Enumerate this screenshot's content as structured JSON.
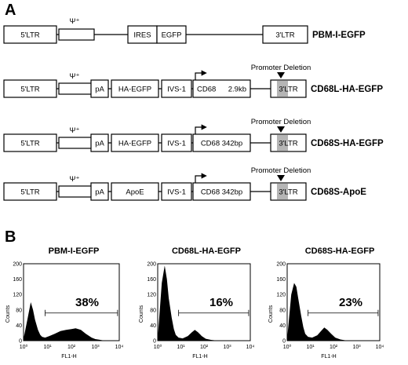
{
  "panels": {
    "a": "A",
    "b": "B"
  },
  "psi": "Ψ⁺",
  "promoter_deletion": "Promoter Deletion",
  "constructs": [
    {
      "name": "PBM-I-EGFP",
      "ltr5": "5'LTR",
      "ires": "IRES",
      "egfp": "EGFP",
      "ltr3": "3'LTR"
    },
    {
      "name": "CD68L-HA-EGFP",
      "ltr5": "5'LTR",
      "pa": "pA",
      "gene": "HA-EGFP",
      "ivs": "IVS-1",
      "cd68": "CD68",
      "size": "2.9kb",
      "ltr3": "3'LTR"
    },
    {
      "name": "CD68S-HA-EGFP",
      "ltr5": "5'LTR",
      "pa": "pA",
      "gene": "HA-EGFP",
      "ivs": "IVS-1",
      "cd68": "CD68 342bp",
      "ltr3": "3'LTR"
    },
    {
      "name": "CD68S-ApoE",
      "ltr5": "5'LTR",
      "pa": "pA",
      "gene": "ApoE",
      "ivs": "IVS-1",
      "cd68": "CD68 342bp",
      "ltr3": "3'LTR"
    }
  ],
  "chart_data": [
    {
      "type": "area",
      "title": "PBM-I-EGFP",
      "percent": "38%",
      "xlabel": "FL1-H",
      "ylabel": "Counts",
      "x_scale": "log",
      "xlim": [
        1,
        10000
      ],
      "ylim": [
        0,
        200
      ],
      "x_ticks": [
        "10⁰",
        "10¹",
        "10²",
        "10³",
        "10⁴"
      ],
      "y_ticks": [
        "0",
        "40",
        "80",
        "120",
        "160",
        "200"
      ],
      "gate": [
        8,
        8500
      ],
      "x": [
        1,
        1.5,
        2,
        2.5,
        3,
        4,
        5,
        6,
        8,
        12,
        20,
        35,
        60,
        100,
        150,
        250,
        400,
        700,
        1000,
        2000,
        10000
      ],
      "y": [
        5,
        60,
        100,
        80,
        55,
        28,
        15,
        10,
        8,
        12,
        18,
        25,
        28,
        30,
        32,
        28,
        18,
        8,
        4,
        1,
        0
      ]
    },
    {
      "type": "area",
      "title": "CD68L-HA-EGFP",
      "percent": "16%",
      "xlabel": "FL1-H",
      "ylabel": "Counts",
      "x_scale": "log",
      "xlim": [
        1,
        10000
      ],
      "ylim": [
        0,
        200
      ],
      "x_ticks": [
        "10⁰",
        "10¹",
        "10²",
        "10³",
        "10⁴"
      ],
      "y_ticks": [
        "0",
        "40",
        "80",
        "120",
        "160",
        "200"
      ],
      "gate": [
        8,
        8500
      ],
      "x": [
        1,
        1.5,
        2,
        2.5,
        3,
        4,
        5,
        6,
        8,
        12,
        20,
        30,
        40,
        55,
        80,
        120,
        200,
        400,
        10000
      ],
      "y": [
        5,
        150,
        195,
        160,
        110,
        60,
        30,
        15,
        8,
        6,
        12,
        22,
        28,
        22,
        12,
        5,
        2,
        0,
        0
      ]
    },
    {
      "type": "area",
      "title": "CD68S-HA-EGFP",
      "percent": "23%",
      "xlabel": "FL1-H",
      "ylabel": "Counts",
      "x_scale": "log",
      "xlim": [
        1,
        10000
      ],
      "ylim": [
        0,
        200
      ],
      "x_ticks": [
        "10⁰",
        "10¹",
        "10²",
        "10³",
        "10⁴"
      ],
      "y_ticks": [
        "0",
        "40",
        "80",
        "120",
        "160",
        "200"
      ],
      "gate": [
        8,
        8500
      ],
      "x": [
        1,
        1.5,
        2,
        2.5,
        3,
        4,
        5,
        6,
        8,
        12,
        20,
        30,
        40,
        55,
        80,
        120,
        200,
        400,
        10000
      ],
      "y": [
        5,
        120,
        150,
        140,
        110,
        65,
        35,
        18,
        10,
        8,
        14,
        26,
        34,
        28,
        18,
        8,
        3,
        0,
        0
      ]
    }
  ]
}
